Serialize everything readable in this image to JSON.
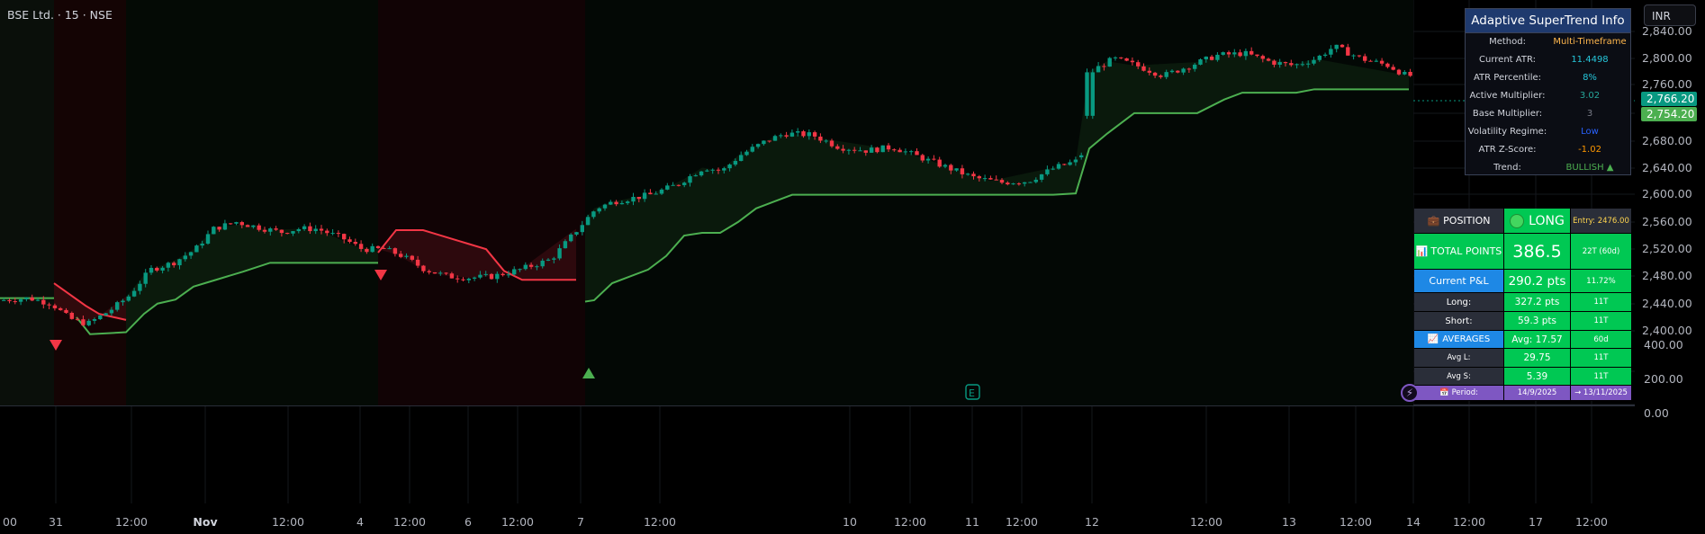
{
  "symbol": "BSE Ltd. · 15 · NSE",
  "currency": "INR",
  "price_axis": {
    "labels": [
      "2,840.00",
      "2,800.00",
      "2,760.00",
      "2,720.00",
      "2,680.00",
      "2,640.00",
      "2,600.00",
      "2,560.00",
      "2,520.00",
      "2,480.00",
      "2,440.00",
      "2,400.00"
    ],
    "current_price": "2,766.20",
    "supertrend_price": "2,754.20",
    "current_color": "#089981",
    "supertrend_color": "#4caf50"
  },
  "indicator_axis": {
    "labels": [
      "400.00",
      "200.00",
      "0.00"
    ]
  },
  "time_axis": {
    "labels": [
      "00",
      "31",
      "12:00",
      "Nov",
      "12:00",
      "4",
      "12:00",
      "6",
      "12:00",
      "7",
      "12:00",
      "10",
      "12:00",
      "11",
      "12:00",
      "12",
      "12:00",
      "13",
      "12:00",
      "14",
      "12:00",
      "17",
      "12:00"
    ]
  },
  "info_panel": {
    "title": "Adaptive SuperTrend Info",
    "rows": [
      {
        "label": "Method:",
        "value": "Multi-Timeframe",
        "color": "#ffb74d"
      },
      {
        "label": "Current ATR:",
        "value": "11.4498",
        "color": "#26c6da"
      },
      {
        "label": "ATR Percentile:",
        "value": "8%",
        "color": "#26c6da"
      },
      {
        "label": "Active Multiplier:",
        "value": "3.02",
        "color": "#26a69a"
      },
      {
        "label": "Base Multiplier:",
        "value": "3",
        "color": "#787b86"
      },
      {
        "label": "Volatility Regime:",
        "value": "Low",
        "color": "#2962ff"
      },
      {
        "label": "ATR Z-Score:",
        "value": "-1.02",
        "color": "#ff9800"
      },
      {
        "label": "Trend:",
        "value": "BULLISH ▲",
        "color": "#4caf50"
      }
    ]
  },
  "position_table": {
    "position": {
      "label": "POSITION",
      "icon": "briefcase-icon",
      "value": "LONG",
      "entry": "Entry: 2476.00"
    },
    "total_points": {
      "label": "TOTAL POINTS",
      "icon": "bar-chart-icon",
      "value": "386.5",
      "trades": "22T (60d)"
    },
    "current_pnl": {
      "label": "Current P&L",
      "value": "290.2 pts",
      "pct": "11.72%"
    },
    "long": {
      "label": "Long:",
      "value": "327.2 pts",
      "trades": "11T"
    },
    "short": {
      "label": "Short:",
      "value": "59.3 pts",
      "trades": "11T"
    },
    "averages": {
      "label": "AVERAGES",
      "icon": "trend-chart-icon",
      "value": "Avg: 17.57",
      "period": "60d"
    },
    "avg_long": {
      "label": "Avg L:",
      "value": "29.75",
      "trades": "11T"
    },
    "avg_short": {
      "label": "Avg S:",
      "value": "5.39",
      "trades": "11T"
    },
    "period": {
      "label": "Period:",
      "icon": "calendar-icon",
      "from": "14/9/2025",
      "to": "→ 13/11/2025"
    }
  },
  "chart_data": {
    "type": "candlestick",
    "series": [
      {
        "name": "Price",
        "description": "BSE Ltd. 15m candles",
        "ohlc_summary": {
          "start_close": 2445,
          "low": 2431,
          "high": 2833,
          "last": 2766.2
        }
      },
      {
        "name": "SuperTrend",
        "values_sample": [
          2448,
          2422,
          2500,
          2520,
          2440,
          2590,
          2600,
          2600,
          2760,
          2720,
          2754.2
        ]
      }
    ],
    "ylim": [
      2400,
      2850
    ],
    "colors": {
      "up": "#089981",
      "down": "#f23645",
      "st_up": "#4caf50",
      "st_down": "#f23645"
    }
  }
}
